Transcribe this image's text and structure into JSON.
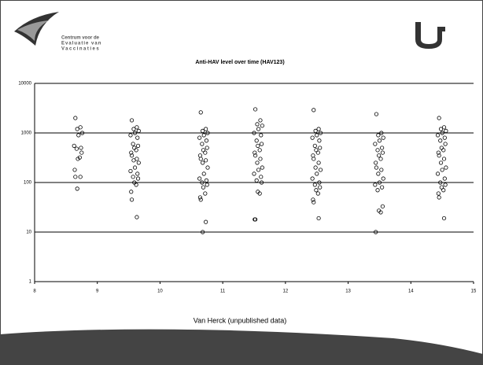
{
  "slide": {
    "logo_text": [
      "Centrum voor de",
      "Evaluatie van",
      "Vaccinaties"
    ],
    "footer": "Van Herck (unpublished data)"
  },
  "chart_data": {
    "type": "scatter",
    "title": "Anti-HAV level over time (HAV123)",
    "xlim": [
      8,
      15
    ],
    "xticks": [
      8,
      9,
      10,
      11,
      12,
      13,
      14,
      15
    ],
    "ylim": [
      1,
      10000
    ],
    "yticks": [
      1,
      10,
      100,
      1000,
      10000
    ],
    "log_y": true,
    "grid": true,
    "series": [
      {
        "color": "#000000",
        "x": [
          8.65,
          8.73,
          8.68,
          8.76,
          8.7,
          8.63,
          8.74,
          8.67,
          8.75,
          8.69,
          8.72,
          8.64,
          8.65,
          8.73,
          8.68,
          9.55,
          9.63,
          9.58,
          9.66,
          9.6,
          9.53,
          9.64,
          9.57,
          9.65,
          9.59,
          9.62,
          9.54,
          9.55,
          9.63,
          9.58,
          9.66,
          9.6,
          9.53,
          9.64,
          9.57,
          9.65,
          9.59,
          9.62,
          9.54,
          9.55,
          9.63,
          10.65,
          10.73,
          10.68,
          10.76,
          10.7,
          10.63,
          10.74,
          10.67,
          10.75,
          10.69,
          10.72,
          10.64,
          10.65,
          10.73,
          10.68,
          10.76,
          10.7,
          10.63,
          10.74,
          10.67,
          10.75,
          10.69,
          10.72,
          10.64,
          10.65,
          10.73,
          10.68,
          11.52,
          11.6,
          11.55,
          11.63,
          11.57,
          11.5,
          11.61,
          11.54,
          11.62,
          11.56,
          11.59,
          11.51,
          11.52,
          11.6,
          11.55,
          11.63,
          11.57,
          11.5,
          11.61,
          11.54,
          11.62,
          11.56,
          11.59,
          11.51,
          11.52,
          12.45,
          12.53,
          12.48,
          12.56,
          12.5,
          12.43,
          12.54,
          12.47,
          12.55,
          12.49,
          12.52,
          12.44,
          12.45,
          12.53,
          12.48,
          12.56,
          12.5,
          12.43,
          12.54,
          12.47,
          12.55,
          12.49,
          12.52,
          12.44,
          12.45,
          12.53,
          13.45,
          13.53,
          13.48,
          13.56,
          13.5,
          13.43,
          13.54,
          13.47,
          13.55,
          13.49,
          13.52,
          13.44,
          13.45,
          13.53,
          13.48,
          13.56,
          13.5,
          13.43,
          13.54,
          13.47,
          13.55,
          13.49,
          13.52,
          13.44,
          14.45,
          14.53,
          14.48,
          14.56,
          14.5,
          14.43,
          14.54,
          14.47,
          14.55,
          14.49,
          14.52,
          14.44,
          14.45,
          14.53,
          14.48,
          14.56,
          14.5,
          14.43,
          14.54,
          14.47,
          14.55,
          14.49,
          14.52,
          14.44,
          14.45,
          14.53
        ],
        "values": [
          2000,
          1300,
          1200,
          1000,
          900,
          550,
          500,
          480,
          400,
          300,
          320,
          180,
          130,
          130,
          75,
          1800,
          1300,
          1200,
          1100,
          1000,
          900,
          800,
          600,
          550,
          500,
          450,
          400,
          350,
          300,
          280,
          250,
          200,
          170,
          150,
          130,
          120,
          100,
          90,
          65,
          45,
          20,
          2600,
          1200,
          1100,
          1000,
          900,
          800,
          700,
          600,
          500,
          450,
          400,
          350,
          300,
          280,
          250,
          200,
          150,
          120,
          110,
          100,
          90,
          80,
          60,
          50,
          45,
          16,
          10,
          3000,
          1800,
          1500,
          1400,
          1200,
          1000,
          900,
          700,
          600,
          550,
          450,
          400,
          350,
          300,
          250,
          200,
          180,
          150,
          130,
          110,
          100,
          65,
          60,
          18,
          18,
          2900,
          1200,
          1100,
          1000,
          900,
          800,
          700,
          550,
          500,
          450,
          400,
          350,
          300,
          250,
          200,
          180,
          150,
          120,
          100,
          90,
          80,
          70,
          60,
          45,
          40,
          19,
          2400,
          1000,
          900,
          800,
          700,
          600,
          500,
          450,
          400,
          350,
          300,
          250,
          200,
          180,
          150,
          120,
          100,
          90,
          80,
          70,
          33,
          27,
          25,
          10,
          2000,
          1300,
          1200,
          1100,
          1000,
          900,
          800,
          700,
          600,
          500,
          450,
          400,
          350,
          300,
          250,
          200,
          180,
          150,
          120,
          100,
          90,
          80,
          70,
          60,
          50,
          19
        ]
      }
    ]
  }
}
